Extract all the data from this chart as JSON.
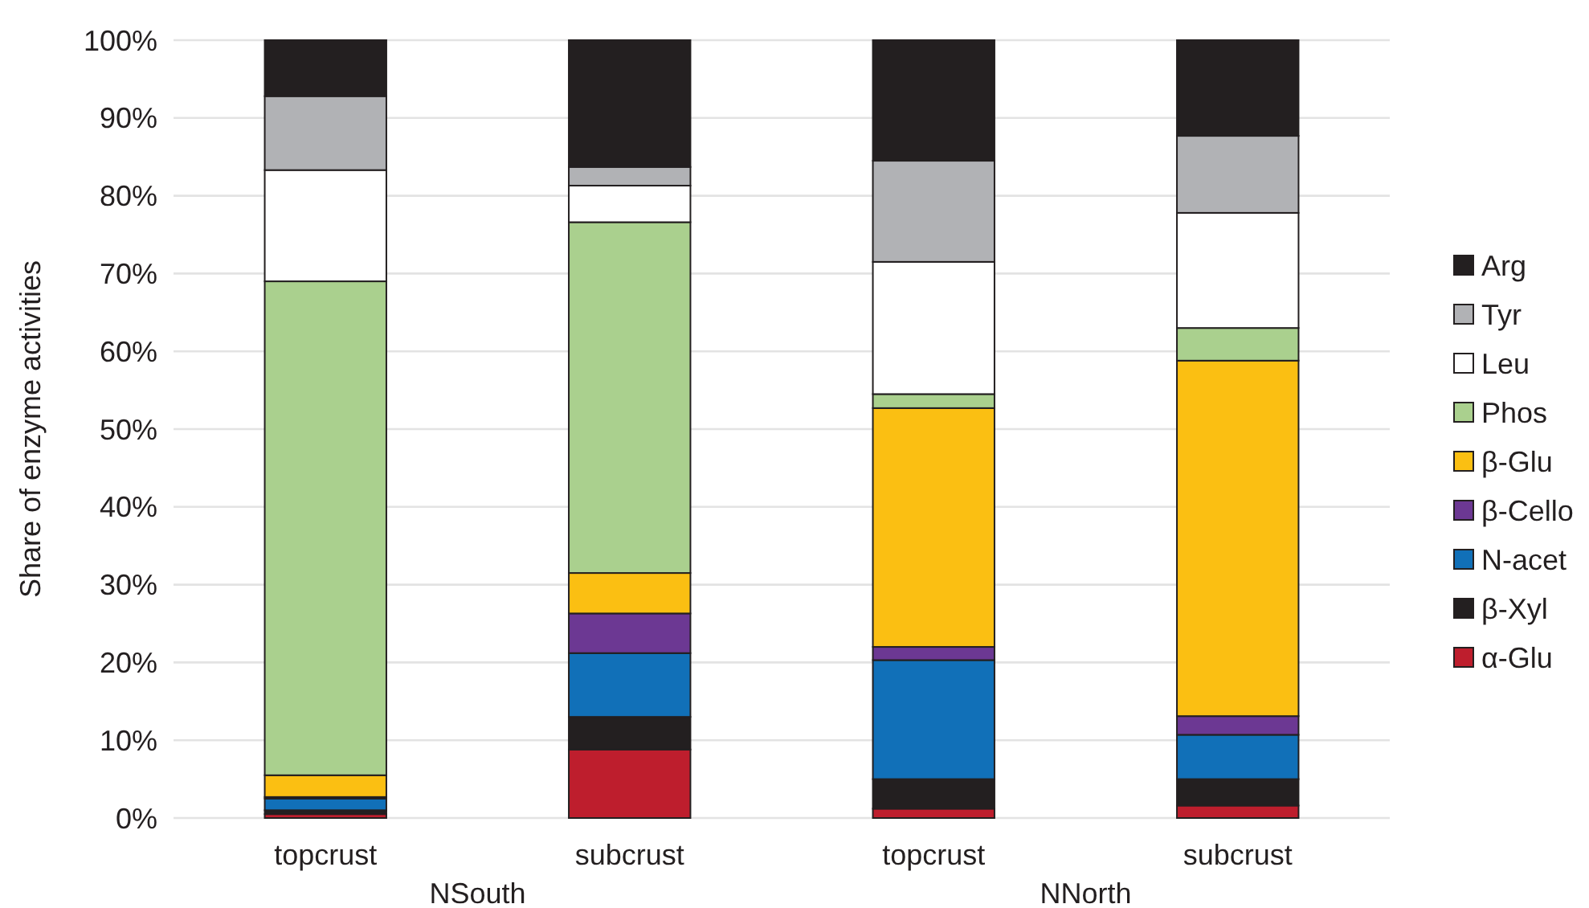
{
  "chart_data": {
    "type": "bar",
    "stacked": true,
    "ylabel": "Share of enzyme activities",
    "categories": [
      "topcrust",
      "subcrust",
      "topcrust",
      "subcrust"
    ],
    "annotations": [
      "NSouth",
      "NNorth"
    ],
    "series": [
      {
        "name": "α-Glu",
        "color": "#be1e2d",
        "values": [
          0.5,
          8.8,
          1.2,
          1.6
        ]
      },
      {
        "name": "β-Xyl",
        "color": "#231f20",
        "values": [
          0.5,
          4.2,
          3.8,
          3.4
        ]
      },
      {
        "name": "N-acet",
        "color": "#1170b8",
        "values": [
          1.5,
          8.2,
          15.3,
          5.7
        ]
      },
      {
        "name": "β-Cello",
        "color": "#6c3893",
        "values": [
          0.2,
          5.1,
          1.7,
          2.4
        ]
      },
      {
        "name": "β-Glu",
        "color": "#fbbf12",
        "values": [
          2.8,
          5.2,
          30.7,
          45.7
        ]
      },
      {
        "name": "Phos",
        "color": "#aad08e",
        "values": [
          63.5,
          45.1,
          1.8,
          4.2
        ]
      },
      {
        "name": "Leu",
        "color": "#ffffff",
        "values": [
          14.3,
          4.7,
          17,
          14.8
        ]
      },
      {
        "name": "Tyr",
        "color": "#b1b2b5",
        "values": [
          9.5,
          2.4,
          13,
          9.9
        ]
      },
      {
        "name": "Arg",
        "color": "#231f20",
        "values": [
          7.2,
          16.3,
          15.5,
          12.3
        ]
      }
    ],
    "ylim": [
      0,
      100
    ],
    "yticks": [
      {
        "value": 0,
        "label": "0%"
      },
      {
        "value": 10,
        "label": "10%"
      },
      {
        "value": 20,
        "label": "20%"
      },
      {
        "value": 30,
        "label": "30%"
      },
      {
        "value": 40,
        "label": "40%"
      },
      {
        "value": 50,
        "label": "50%"
      },
      {
        "value": 60,
        "label": "60%"
      },
      {
        "value": 70,
        "label": "70%"
      },
      {
        "value": 80,
        "label": "80%"
      },
      {
        "value": 90,
        "label": "90%"
      },
      {
        "value": 100,
        "label": "100%"
      }
    ],
    "grid": "y",
    "legend": "right"
  }
}
